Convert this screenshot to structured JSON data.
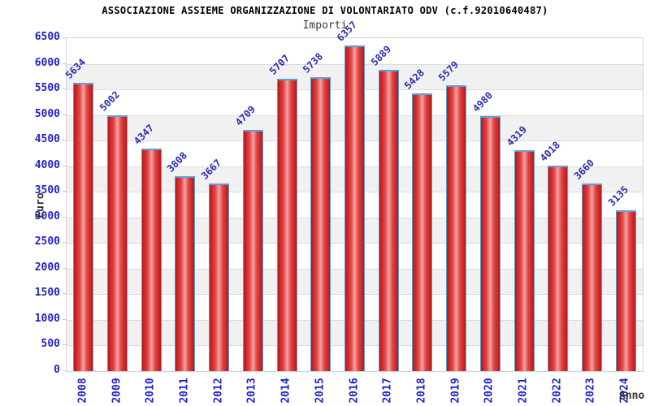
{
  "title": "ASSOCIAZIONE ASSIEME ORGANIZZAZIONE DI VOLONTARIATO ODV (c.f.92010640487)",
  "chart_data": {
    "type": "bar",
    "title": "Importi",
    "xlabel": "Anno",
    "ylabel": "Euro",
    "categories": [
      "2008",
      "2009",
      "2010",
      "2011",
      "2012",
      "2013",
      "2014",
      "2015",
      "2016",
      "2017",
      "2018",
      "2019",
      "2020",
      "2021",
      "2022",
      "2023",
      "2024"
    ],
    "values": [
      5634,
      5002,
      4347,
      3808,
      3667,
      4709,
      5707,
      5738,
      6357,
      5889,
      5428,
      5579,
      4980,
      4319,
      4018,
      3660,
      3135
    ],
    "ylim": [
      0,
      6500
    ],
    "ytick_step": 500,
    "grid": true,
    "legend": "none",
    "band_colors": [
      "#ffffff",
      "#f1f1f1"
    ],
    "bar_fill_color": "#d93030",
    "bar_border_color": "#5b9fd8",
    "value_label_color": "#2b2bb0",
    "tick_label_color": "#2222cc",
    "axis_title_color": "#333333"
  }
}
